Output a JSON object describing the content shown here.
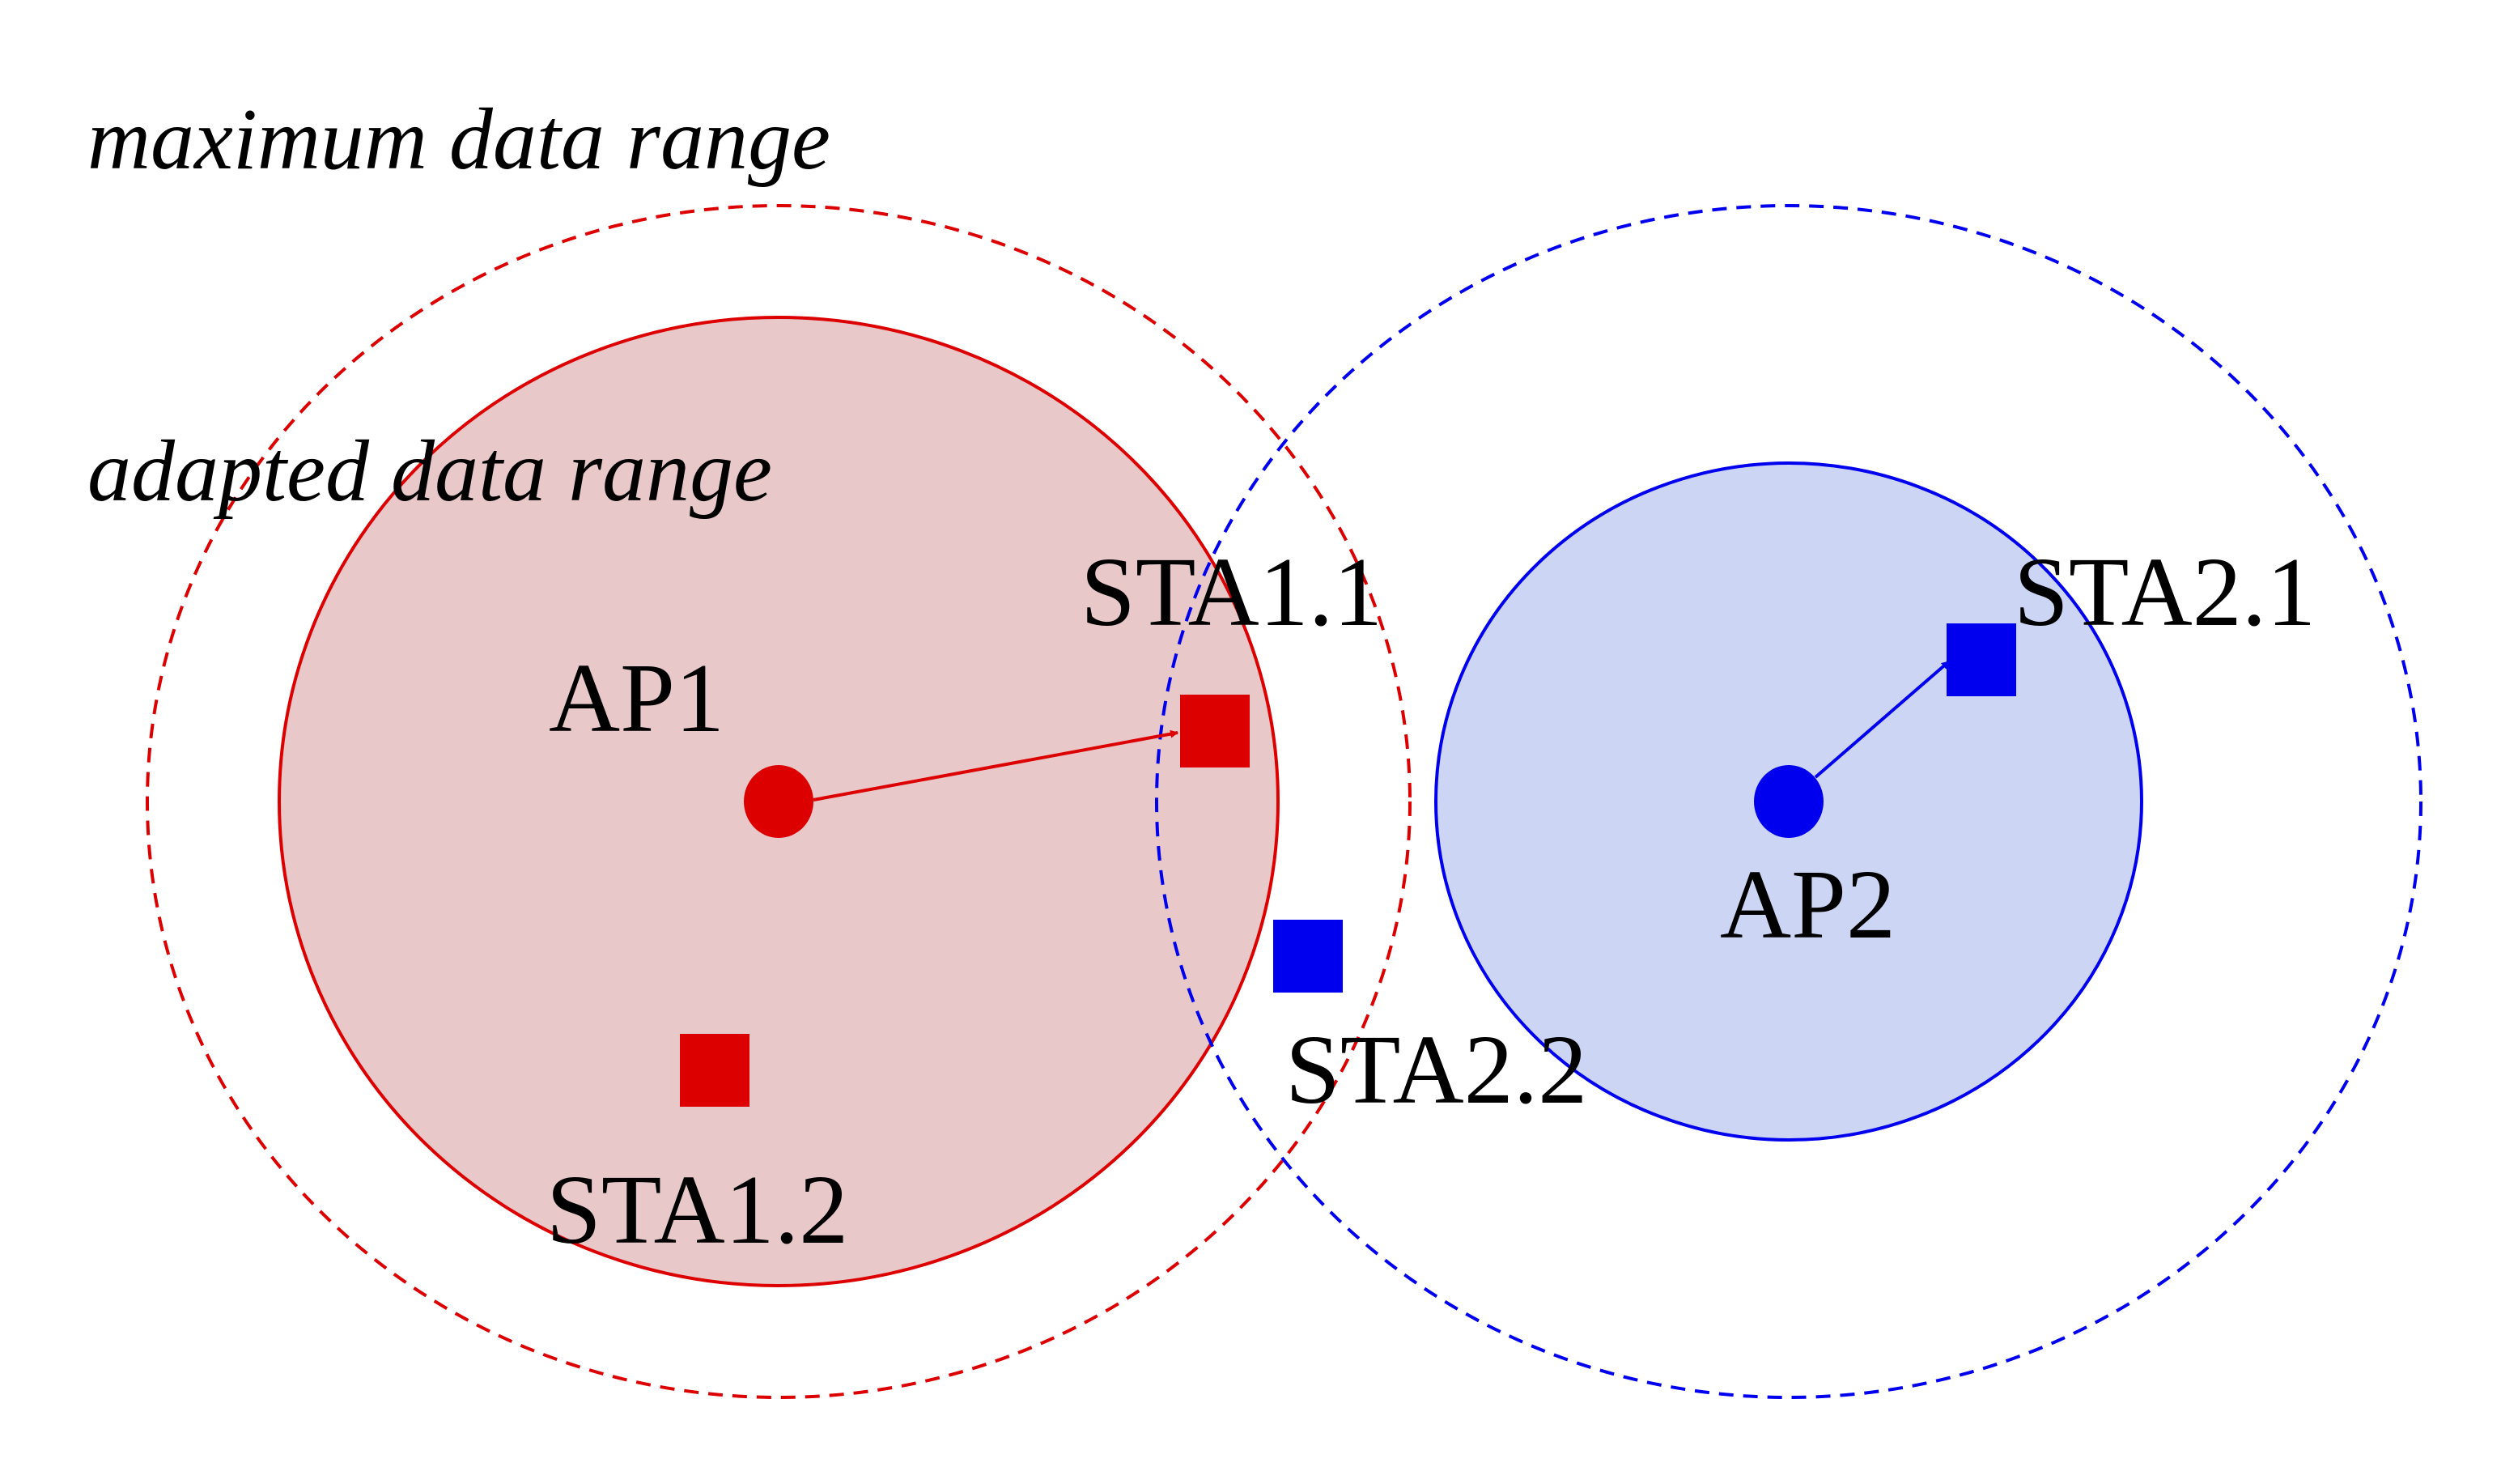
{
  "labels": {
    "maximum_data_range": "maximum data range",
    "adapted_data_range": "adapted data range"
  },
  "nodes": {
    "ap1": "AP1",
    "ap2": "AP2",
    "sta1_1": "STA1.1",
    "sta1_2": "STA1.2",
    "sta2_1": "STA2.1",
    "sta2_2": "STA2.2"
  },
  "colors": {
    "network1": "#dd0000",
    "network1_fill": "#e8c8c8",
    "network2": "#0000ee",
    "network2_fill": "#ccd6f4",
    "text": "#000000"
  }
}
